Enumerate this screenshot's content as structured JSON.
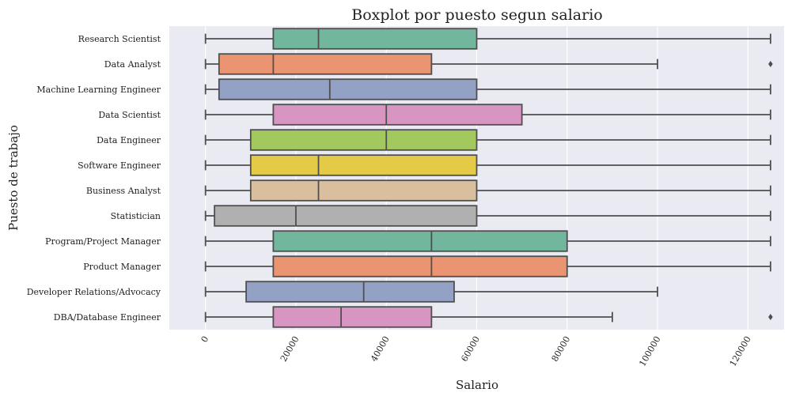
{
  "chart_data": {
    "type": "boxplot",
    "title": "Boxplot por puesto segun salario",
    "xlabel": "Salario",
    "ylabel": "Puesto de trabajo",
    "xlim": [
      -8000,
      128000
    ],
    "xticks": [
      0,
      20000,
      40000,
      60000,
      80000,
      100000,
      120000
    ],
    "grid": true,
    "background": "#EAEAF2",
    "grid_color": "#FFFFFF",
    "line_color": "#4F4F4F",
    "categories": [
      "Research Scientist",
      "Data Analyst",
      "Machine Learning Engineer",
      "Data Scientist",
      "Data Engineer",
      "Software Engineer",
      "Business Analyst",
      "Statistician",
      "Program/Project Manager",
      "Product Manager",
      "Developer Relations/Advocacy",
      "DBA/Database Engineer"
    ],
    "boxes": [
      {
        "whisker_low": 0,
        "q1": 15000,
        "median": 25000,
        "q3": 60000,
        "whisker_high": 125000,
        "outliers": [],
        "color": "#72B69E"
      },
      {
        "whisker_low": 0,
        "q1": 3000,
        "median": 15000,
        "q3": 50000,
        "whisker_high": 100000,
        "outliers": [
          125000
        ],
        "color": "#EA9471"
      },
      {
        "whisker_low": 0,
        "q1": 3000,
        "median": 27500,
        "q3": 60000,
        "whisker_high": 125000,
        "outliers": [],
        "color": "#93A1C5"
      },
      {
        "whisker_low": 0,
        "q1": 15000,
        "median": 40000,
        "q3": 70000,
        "whisker_high": 125000,
        "outliers": [],
        "color": "#D995C1"
      },
      {
        "whisker_low": 0,
        "q1": 10000,
        "median": 40000,
        "q3": 60000,
        "whisker_high": 125000,
        "outliers": [],
        "color": "#A2C95D"
      },
      {
        "whisker_low": 0,
        "q1": 10000,
        "median": 25000,
        "q3": 60000,
        "whisker_high": 125000,
        "outliers": [],
        "color": "#E5CA48"
      },
      {
        "whisker_low": 0,
        "q1": 10000,
        "median": 25000,
        "q3": 60000,
        "whisker_high": 125000,
        "outliers": [],
        "color": "#DABF9E"
      },
      {
        "whisker_low": 0,
        "q1": 2000,
        "median": 20000,
        "q3": 60000,
        "whisker_high": 125000,
        "outliers": [],
        "color": "#B0B0B0"
      },
      {
        "whisker_low": 0,
        "q1": 15000,
        "median": 50000,
        "q3": 80000,
        "whisker_high": 125000,
        "outliers": [],
        "color": "#72B69E"
      },
      {
        "whisker_low": 0,
        "q1": 15000,
        "median": 50000,
        "q3": 80000,
        "whisker_high": 125000,
        "outliers": [],
        "color": "#EA9471"
      },
      {
        "whisker_low": 0,
        "q1": 9000,
        "median": 35000,
        "q3": 55000,
        "whisker_high": 100000,
        "outliers": [],
        "color": "#93A1C5"
      },
      {
        "whisker_low": 0,
        "q1": 15000,
        "median": 30000,
        "q3": 50000,
        "whisker_high": 90000,
        "outliers": [
          125000
        ],
        "color": "#D995C1"
      }
    ]
  }
}
